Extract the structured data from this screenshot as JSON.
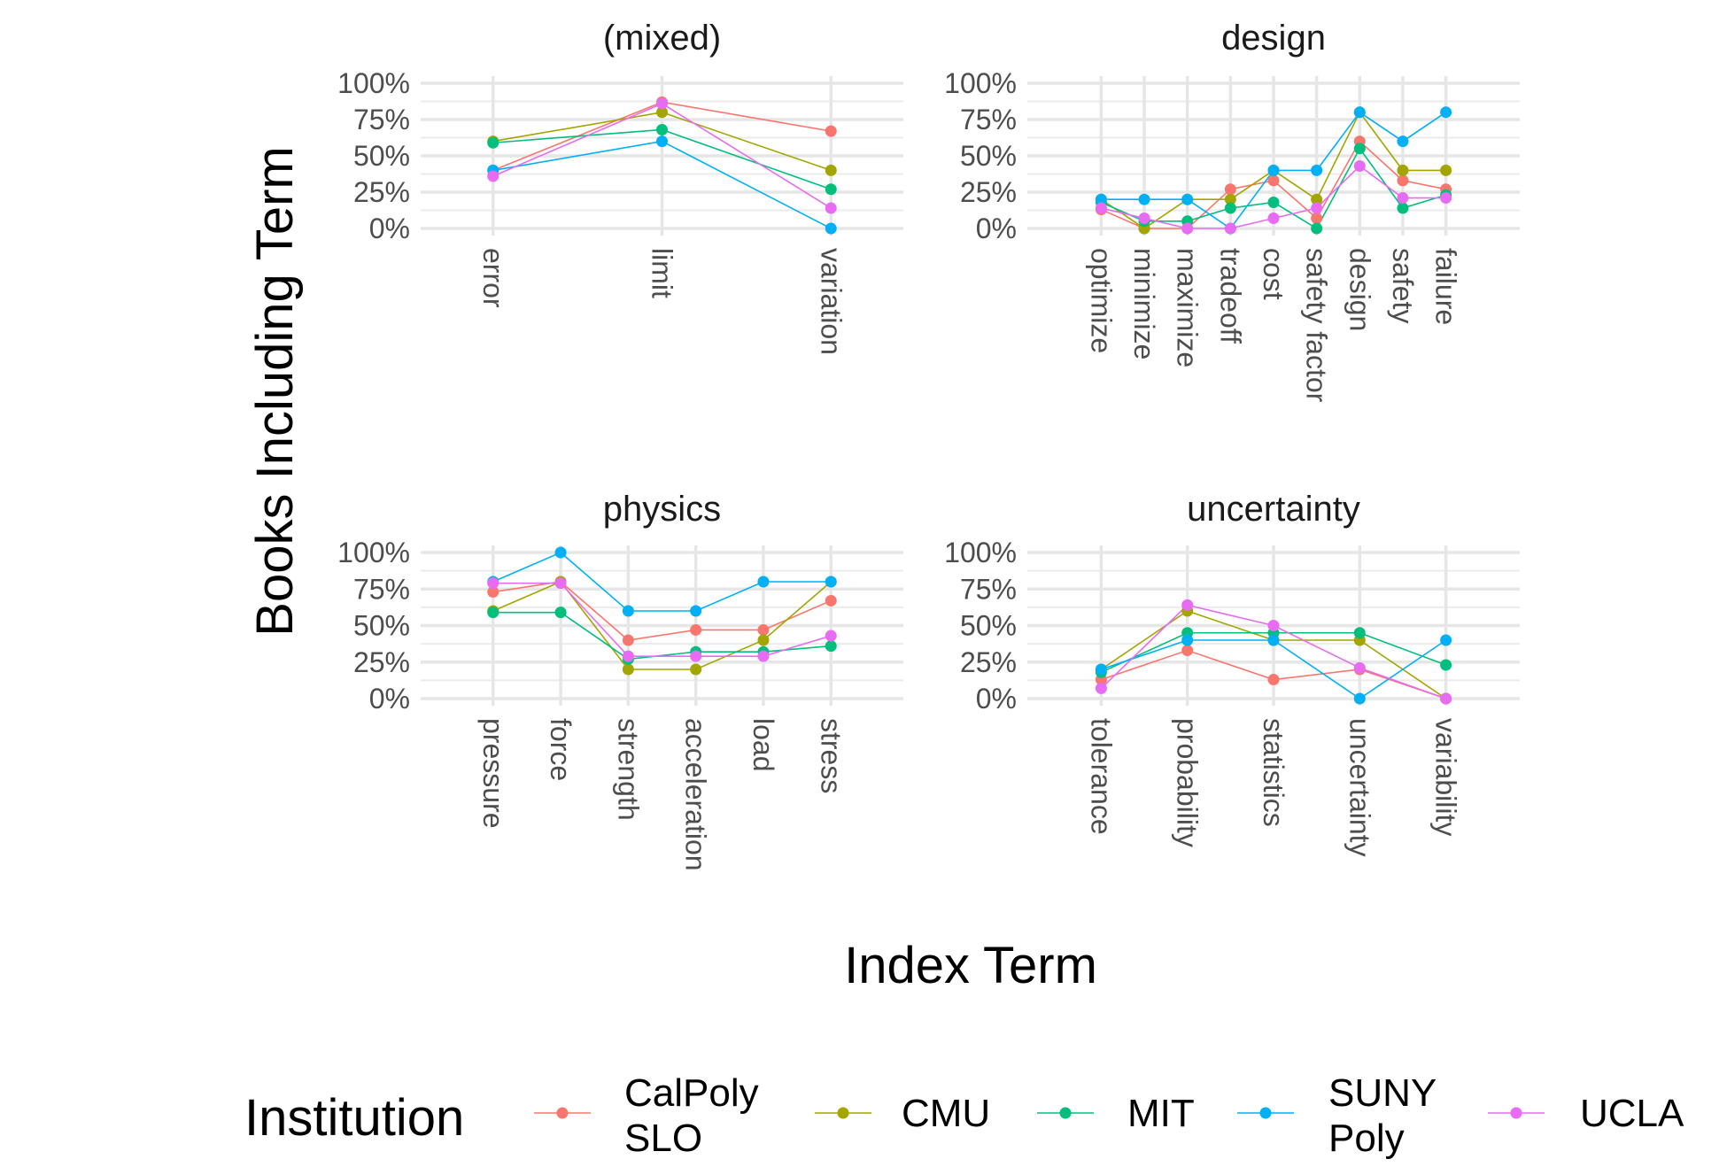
{
  "chart_data": {
    "type": "line",
    "ylabel": "Books Including Term",
    "xlabel": "Index Term",
    "y_ticks": [
      "0%",
      "25%",
      "50%",
      "75%",
      "100%"
    ],
    "ylim": [
      0,
      1
    ],
    "grid": true,
    "legend": {
      "title": "Institution",
      "position": "bottom",
      "entries": [
        {
          "name": "CalPoly SLO",
          "lines": [
            "CalPoly",
            "SLO"
          ],
          "color": "#F8766D"
        },
        {
          "name": "CMU",
          "lines": [
            "CMU"
          ],
          "color": "#A3A500"
        },
        {
          "name": "MIT",
          "lines": [
            "MIT"
          ],
          "color": "#00BF7D"
        },
        {
          "name": "SUNY Poly",
          "lines": [
            "SUNY",
            "Poly"
          ],
          "color": "#00B0F6"
        },
        {
          "name": "UCLA",
          "lines": [
            "UCLA"
          ],
          "color": "#E76BF3"
        }
      ]
    },
    "facets": [
      {
        "title": "(mixed)",
        "categories": [
          "error",
          "limit",
          "variation"
        ],
        "series": [
          {
            "name": "CalPoly SLO",
            "values": [
              0.4,
              0.87,
              0.67
            ]
          },
          {
            "name": "CMU",
            "values": [
              0.6,
              0.8,
              0.4
            ]
          },
          {
            "name": "MIT",
            "values": [
              0.59,
              0.68,
              0.27
            ]
          },
          {
            "name": "SUNY Poly",
            "values": [
              0.4,
              0.6,
              0.0
            ]
          },
          {
            "name": "UCLA",
            "values": [
              0.36,
              0.86,
              0.14
            ]
          }
        ]
      },
      {
        "title": "design",
        "categories": [
          "optimize",
          "minimize",
          "maximize",
          "tradeoff",
          "cost",
          "safety factor",
          "design",
          "safety",
          "failure"
        ],
        "series": [
          {
            "name": "CalPoly SLO",
            "values": [
              0.13,
              0.0,
              0.0,
              0.27,
              0.33,
              0.07,
              0.6,
              0.33,
              0.27
            ]
          },
          {
            "name": "CMU",
            "values": [
              0.2,
              0.0,
              0.2,
              0.2,
              0.4,
              0.2,
              0.8,
              0.4,
              0.4
            ]
          },
          {
            "name": "MIT",
            "values": [
              0.18,
              0.05,
              0.05,
              0.14,
              0.18,
              0.0,
              0.55,
              0.14,
              0.23
            ]
          },
          {
            "name": "SUNY Poly",
            "values": [
              0.2,
              0.2,
              0.2,
              0.0,
              0.4,
              0.4,
              0.8,
              0.6,
              0.8
            ]
          },
          {
            "name": "UCLA",
            "values": [
              0.14,
              0.07,
              0.0,
              0.0,
              0.07,
              0.14,
              0.43,
              0.21,
              0.21
            ]
          }
        ]
      },
      {
        "title": "physics",
        "categories": [
          "pressure",
          "force",
          "strength",
          "acceleration",
          "load",
          "stress"
        ],
        "series": [
          {
            "name": "CalPoly SLO",
            "values": [
              0.73,
              0.8,
              0.4,
              0.47,
              0.47,
              0.67
            ]
          },
          {
            "name": "CMU",
            "values": [
              0.6,
              0.8,
              0.2,
              0.2,
              0.4,
              0.8
            ]
          },
          {
            "name": "MIT",
            "values": [
              0.59,
              0.59,
              0.27,
              0.32,
              0.32,
              0.36
            ]
          },
          {
            "name": "SUNY Poly",
            "values": [
              0.8,
              1.0,
              0.6,
              0.6,
              0.8,
              0.8
            ]
          },
          {
            "name": "UCLA",
            "values": [
              0.79,
              0.79,
              0.29,
              0.29,
              0.29,
              0.43
            ]
          }
        ]
      },
      {
        "title": "uncertainty",
        "categories": [
          "tolerance",
          "probability",
          "statistics",
          "uncertainty",
          "variability"
        ],
        "series": [
          {
            "name": "CalPoly SLO",
            "values": [
              0.13,
              0.33,
              0.13,
              0.2,
              0.0
            ]
          },
          {
            "name": "CMU",
            "values": [
              0.2,
              0.6,
              0.4,
              0.4,
              0.0
            ]
          },
          {
            "name": "MIT",
            "values": [
              0.18,
              0.45,
              0.45,
              0.45,
              0.23
            ]
          },
          {
            "name": "SUNY Poly",
            "values": [
              0.2,
              0.4,
              0.4,
              0.0,
              0.4
            ]
          },
          {
            "name": "UCLA",
            "values": [
              0.07,
              0.64,
              0.5,
              0.21,
              0.0
            ]
          }
        ]
      }
    ]
  }
}
